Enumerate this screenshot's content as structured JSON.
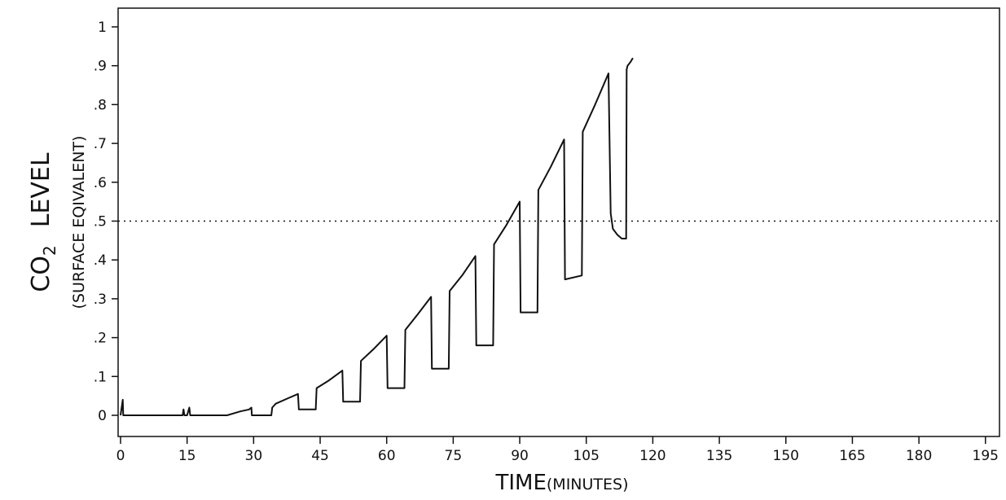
{
  "chart_data": {
    "type": "line",
    "title": "",
    "xlabel": "TIME",
    "xlabel_suffix": "(MINUTES)",
    "ylabel": {
      "main_prefix": "CO",
      "main_subscript": "2",
      "main_suffix": "LEVEL",
      "sub": "(SURFACE  EQIVALENT)"
    },
    "xlim": [
      0,
      200
    ],
    "ylim": [
      -0.05,
      1.05
    ],
    "x_ticks": [
      0,
      15,
      30,
      45,
      60,
      75,
      90,
      105,
      120,
      135,
      150,
      165,
      180,
      195
    ],
    "x_tick_labels": [
      "0",
      "15",
      "30",
      "45",
      "60",
      "75",
      "90",
      "105",
      "120",
      "135",
      "150",
      "165",
      "180",
      "195"
    ],
    "y_ticks": [
      0,
      0.1,
      0.2,
      0.3,
      0.4,
      0.5,
      0.6,
      0.7,
      0.8,
      0.9,
      1.0
    ],
    "y_tick_labels": [
      "0",
      ".1",
      ".2",
      ".3",
      ".4",
      ".5",
      ".6",
      ".7",
      ".8",
      ".9",
      "1"
    ],
    "grid": false,
    "reference_line": {
      "y": 0.5,
      "style": "dotted"
    },
    "series": [
      {
        "x": [
          0,
          0.5,
          0.6,
          1,
          14,
          14.2,
          14.4,
          15,
          15.5,
          15.7,
          16,
          24,
          27,
          29,
          29.5,
          29.6,
          30,
          34,
          34.2,
          35,
          38,
          40,
          40.2,
          44,
          44.2,
          47,
          50,
          50.2,
          54,
          54.2,
          57,
          60,
          60.2,
          64,
          64.2,
          67,
          70,
          70.2,
          74,
          74.2,
          77,
          80,
          80.2,
          84,
          84.2,
          87,
          90,
          90.2,
          94,
          94.2,
          97,
          100,
          100.2,
          104,
          104.2,
          107,
          110,
          110.5,
          111,
          112,
          113,
          114,
          114.1,
          114.3,
          115,
          115.5
        ],
        "y": [
          0,
          0.04,
          0,
          0,
          0,
          0.015,
          0,
          0,
          0.02,
          0,
          0,
          0,
          0.01,
          0.015,
          0.02,
          0,
          0,
          0,
          0.02,
          0.03,
          0.045,
          0.055,
          0.015,
          0.015,
          0.07,
          0.09,
          0.115,
          0.035,
          0.035,
          0.14,
          0.17,
          0.205,
          0.07,
          0.07,
          0.22,
          0.26,
          0.305,
          0.12,
          0.12,
          0.32,
          0.36,
          0.41,
          0.18,
          0.18,
          0.44,
          0.49,
          0.55,
          0.265,
          0.265,
          0.58,
          0.64,
          0.71,
          0.35,
          0.36,
          0.73,
          0.8,
          0.88,
          0.52,
          0.48,
          0.465,
          0.455,
          0.455,
          0.89,
          0.9,
          0.91,
          0.92
        ]
      }
    ]
  }
}
